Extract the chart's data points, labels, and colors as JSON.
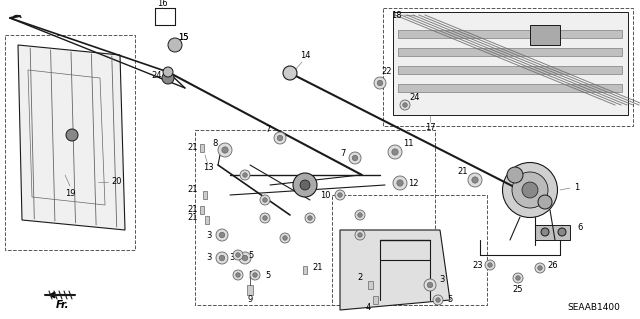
{
  "diagram_code": "SEAAB1400",
  "background_color": "#ffffff",
  "figsize": [
    6.4,
    3.19
  ],
  "dpi": 100,
  "line_color": "#1a1a1a",
  "gray_color": "#666666",
  "light_gray": "#aaaaaa",
  "font_size": 6.0
}
